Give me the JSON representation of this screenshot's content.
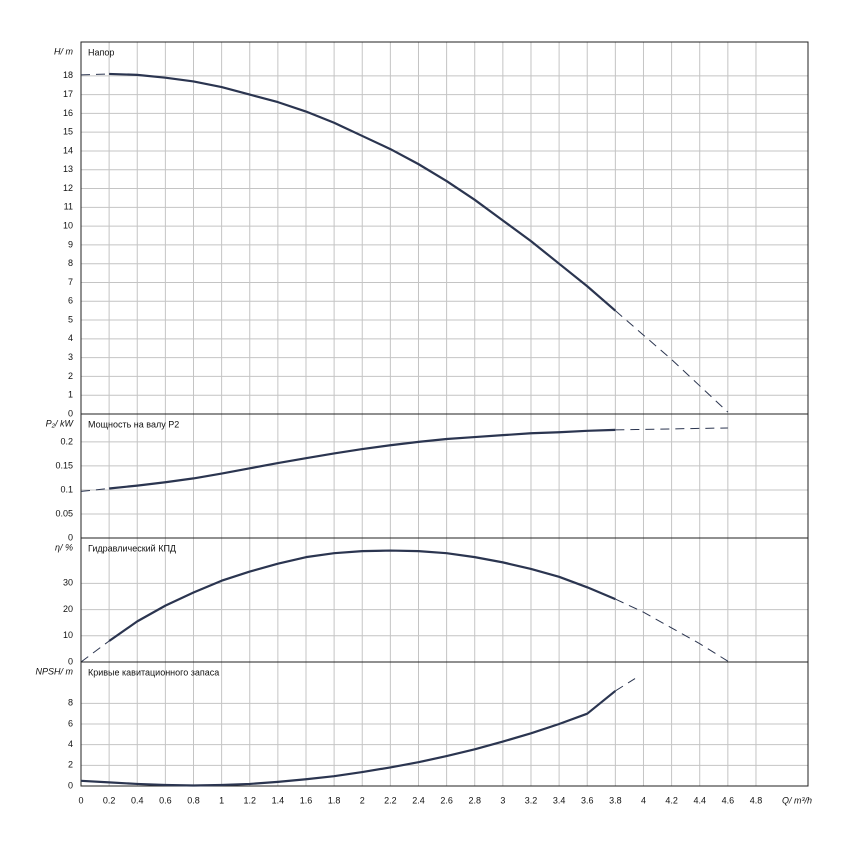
{
  "chart_data": [
    {
      "type": "line",
      "ylabel": "H/ m",
      "title": "Напор",
      "x": [
        0,
        0.2,
        0.4,
        0.6,
        0.8,
        1,
        1.2,
        1.4,
        1.6,
        1.8,
        2,
        2.2,
        2.4,
        2.6,
        2.8,
        3,
        3.2,
        3.4,
        3.6,
        3.8,
        4,
        4.2,
        4.4,
        4.6
      ],
      "series": [
        {
          "style": "solid",
          "values": [
            null,
            18.1,
            18.05,
            17.9,
            17.7,
            17.4,
            17.0,
            16.6,
            16.1,
            15.5,
            14.8,
            14.1,
            13.3,
            12.4,
            11.4,
            10.3,
            9.2,
            8.0,
            6.8,
            5.5,
            null,
            null,
            null,
            null
          ]
        },
        {
          "style": "dashed",
          "values": [
            18.05,
            18.1,
            null,
            null,
            null,
            null,
            null,
            null,
            null,
            null,
            null,
            null,
            null,
            null,
            null,
            null,
            null,
            null,
            null,
            5.5,
            4.2,
            2.9,
            1.5,
            0.1
          ]
        }
      ],
      "xlim": [
        0,
        5.17
      ],
      "xticks": [
        0,
        0.2,
        0.4,
        0.6,
        0.8,
        1,
        1.2,
        1.4,
        1.6,
        1.8,
        2,
        2.2,
        2.4,
        2.6,
        2.8,
        3,
        3.2,
        3.4,
        3.6,
        3.8,
        4,
        4.2,
        4.4,
        4.6,
        4.8
      ],
      "ylim": [
        0,
        19.8
      ],
      "yticks": [
        0,
        1,
        2,
        3,
        4,
        5,
        6,
        7,
        8,
        9,
        10,
        11,
        12,
        13,
        14,
        15,
        16,
        17,
        18
      ],
      "grid": true,
      "color": "#2b3550"
    },
    {
      "type": "line",
      "ylabel": "P₂/ kW",
      "title": "Мощность на валу P2",
      "x": [
        0,
        0.2,
        0.4,
        0.6,
        0.8,
        1,
        1.2,
        1.4,
        1.6,
        1.8,
        2,
        2.2,
        2.4,
        2.6,
        2.8,
        3,
        3.2,
        3.4,
        3.6,
        3.8,
        4,
        4.2,
        4.4,
        4.6
      ],
      "series": [
        {
          "style": "solid",
          "values": [
            null,
            0.103,
            0.109,
            0.116,
            0.124,
            0.134,
            0.145,
            0.156,
            0.166,
            0.176,
            0.185,
            0.193,
            0.2,
            0.206,
            0.21,
            0.214,
            0.218,
            0.22,
            0.223,
            0.225,
            null,
            null,
            null,
            null
          ]
        },
        {
          "style": "dashed",
          "values": [
            0.097,
            0.103,
            null,
            null,
            null,
            null,
            null,
            null,
            null,
            null,
            null,
            null,
            null,
            null,
            null,
            null,
            null,
            null,
            null,
            0.225,
            0.226,
            0.227,
            0.228,
            0.229
          ]
        }
      ],
      "xlim": [
        0,
        5.17
      ],
      "xticks": [
        0,
        0.2,
        0.4,
        0.6,
        0.8,
        1,
        1.2,
        1.4,
        1.6,
        1.8,
        2,
        2.2,
        2.4,
        2.6,
        2.8,
        3,
        3.2,
        3.4,
        3.6,
        3.8,
        4,
        4.2,
        4.4,
        4.6,
        4.8
      ],
      "ylim": [
        0,
        0.258
      ],
      "yticks": [
        0,
        0.05,
        0.1,
        0.15,
        0.2
      ],
      "grid": true,
      "color": "#2b3550"
    },
    {
      "type": "line",
      "ylabel": "η/ %",
      "title": "Гидравлический КПД",
      "x": [
        0,
        0.2,
        0.4,
        0.6,
        0.8,
        1,
        1.2,
        1.4,
        1.6,
        1.8,
        2,
        2.2,
        2.4,
        2.6,
        2.8,
        3,
        3.2,
        3.4,
        3.6,
        3.8,
        4,
        4.2,
        4.4,
        4.6
      ],
      "series": [
        {
          "style": "solid",
          "values": [
            null,
            8,
            15.5,
            21.5,
            26.5,
            31,
            34.5,
            37.5,
            40,
            41.5,
            42.3,
            42.5,
            42.3,
            41.5,
            40,
            38,
            35.5,
            32.5,
            28.5,
            24,
            null,
            null,
            null,
            null
          ]
        },
        {
          "style": "dashed",
          "values": [
            0,
            8,
            null,
            null,
            null,
            null,
            null,
            null,
            null,
            null,
            null,
            null,
            null,
            null,
            null,
            null,
            null,
            null,
            null,
            24,
            19,
            13,
            7,
            0.3
          ]
        }
      ],
      "xlim": [
        0,
        5.17
      ],
      "xticks": [
        0,
        0.2,
        0.4,
        0.6,
        0.8,
        1,
        1.2,
        1.4,
        1.6,
        1.8,
        2,
        2.2,
        2.4,
        2.6,
        2.8,
        3,
        3.2,
        3.4,
        3.6,
        3.8,
        4,
        4.2,
        4.4,
        4.6,
        4.8
      ],
      "ylim": [
        0,
        47.3
      ],
      "yticks": [
        0,
        10,
        20,
        30
      ],
      "grid": true,
      "color": "#2b3550"
    },
    {
      "type": "line",
      "ylabel": "NPSH/ m",
      "title": "Кривые кавитационного запаса",
      "xlabel": "Q/ m³/h",
      "x": [
        0,
        0.2,
        0.4,
        0.6,
        0.8,
        1,
        1.2,
        1.4,
        1.6,
        1.8,
        2,
        2.2,
        2.4,
        2.6,
        2.8,
        3,
        3.2,
        3.4,
        3.6,
        3.8,
        3.94
      ],
      "series": [
        {
          "style": "solid",
          "values": [
            0.5,
            0.35,
            0.2,
            0.1,
            0.05,
            0.1,
            0.2,
            0.4,
            0.65,
            0.95,
            1.35,
            1.8,
            2.3,
            2.9,
            3.55,
            4.3,
            5.1,
            6.0,
            7.0,
            9.2,
            null
          ]
        },
        {
          "style": "dashed",
          "values": [
            null,
            null,
            null,
            null,
            null,
            null,
            null,
            null,
            null,
            null,
            null,
            null,
            null,
            null,
            null,
            null,
            null,
            null,
            null,
            9.2,
            10.4
          ]
        }
      ],
      "xlim": [
        0,
        5.17
      ],
      "xticks": [
        0,
        0.2,
        0.4,
        0.6,
        0.8,
        1,
        1.2,
        1.4,
        1.6,
        1.8,
        2,
        2.2,
        2.4,
        2.6,
        2.8,
        3,
        3.2,
        3.4,
        3.6,
        3.8,
        4,
        4.2,
        4.4,
        4.6,
        4.8
      ],
      "ylim": [
        0,
        12
      ],
      "yticks": [
        0,
        2,
        4,
        6,
        8
      ],
      "grid": true,
      "color": "#2b3550"
    }
  ]
}
